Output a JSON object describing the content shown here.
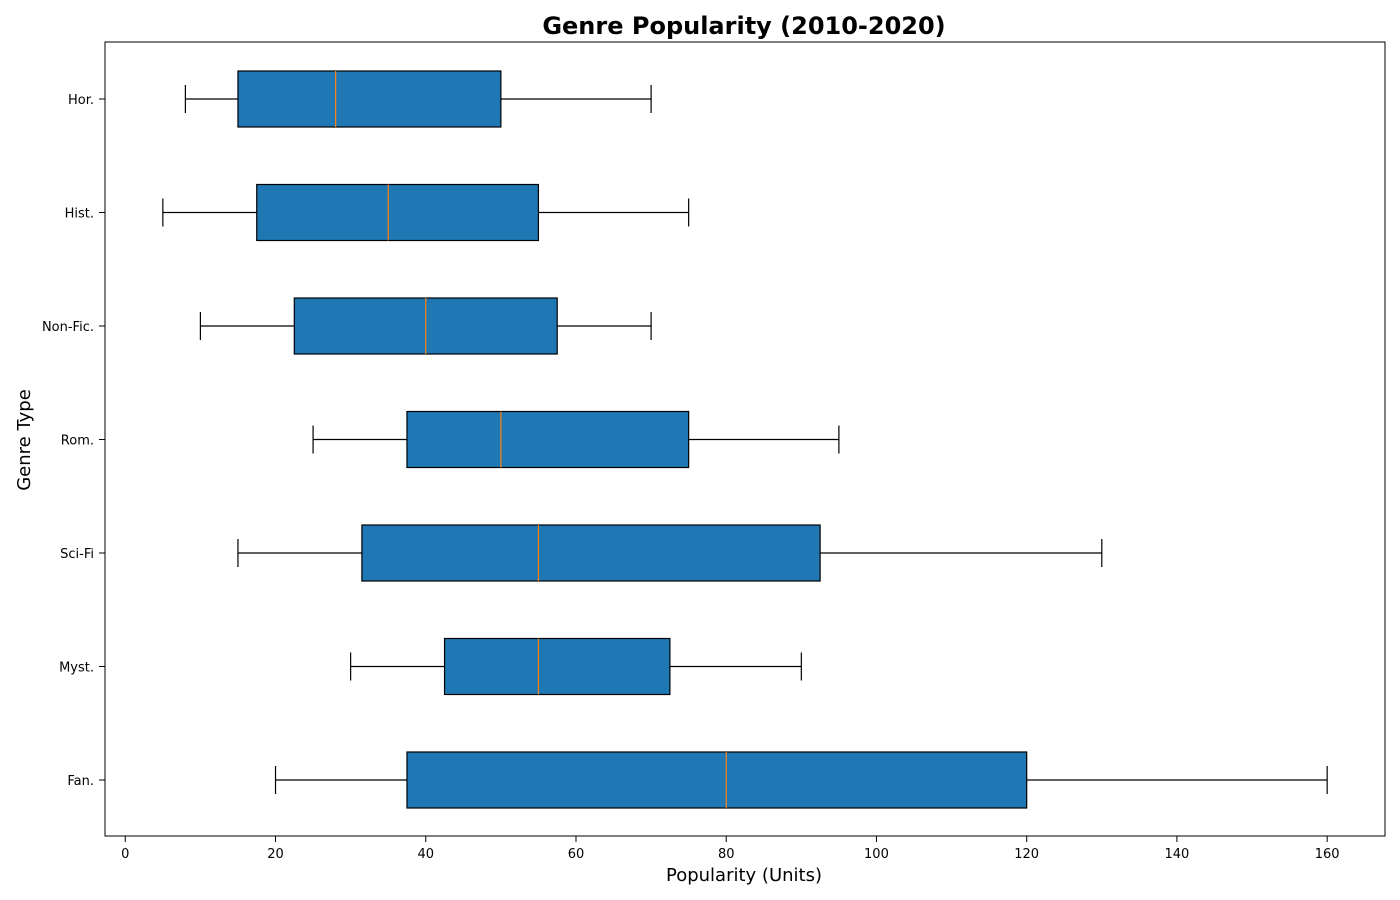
{
  "chart_data": {
    "type": "boxplot",
    "orientation": "horizontal",
    "title": "Genre Popularity (2010-2020)",
    "xlabel": "Popularity (Units)",
    "ylabel": "Genre Type",
    "xlim": [
      -2.7,
      167.7
    ],
    "xticks": [
      0,
      20,
      40,
      60,
      80,
      100,
      120,
      140,
      160
    ],
    "categories": [
      "Fan.",
      "Myst.",
      "Sci-Fi",
      "Rom.",
      "Non-Fic.",
      "Hist.",
      "Hor."
    ],
    "boxes": [
      {
        "label": "Fan.",
        "whisker_low": 20,
        "q1": 37.5,
        "median": 80,
        "q3": 120,
        "whisker_high": 160
      },
      {
        "label": "Myst.",
        "whisker_low": 30,
        "q1": 42.5,
        "median": 55,
        "q3": 72.5,
        "whisker_high": 90
      },
      {
        "label": "Sci-Fi",
        "whisker_low": 15,
        "q1": 31.5,
        "median": 55,
        "q3": 92.5,
        "whisker_high": 130
      },
      {
        "label": "Rom.",
        "whisker_low": 25,
        "q1": 37.5,
        "median": 50,
        "q3": 75,
        "whisker_high": 95
      },
      {
        "label": "Non-Fic.",
        "whisker_low": 10,
        "q1": 22.5,
        "median": 40,
        "q3": 57.5,
        "whisker_high": 70
      },
      {
        "label": "Hist.",
        "whisker_low": 5,
        "q1": 17.5,
        "median": 35,
        "q3": 55,
        "whisker_high": 75
      },
      {
        "label": "Hor.",
        "whisker_low": 8,
        "q1": 15,
        "median": 28,
        "q3": 50,
        "whisker_high": 70
      }
    ],
    "colors": {
      "box_fill": "#1f77b4",
      "box_edge": "#000000",
      "median": "#ff7f0e",
      "whisker": "#000000"
    },
    "grid": false,
    "legend": "none"
  }
}
